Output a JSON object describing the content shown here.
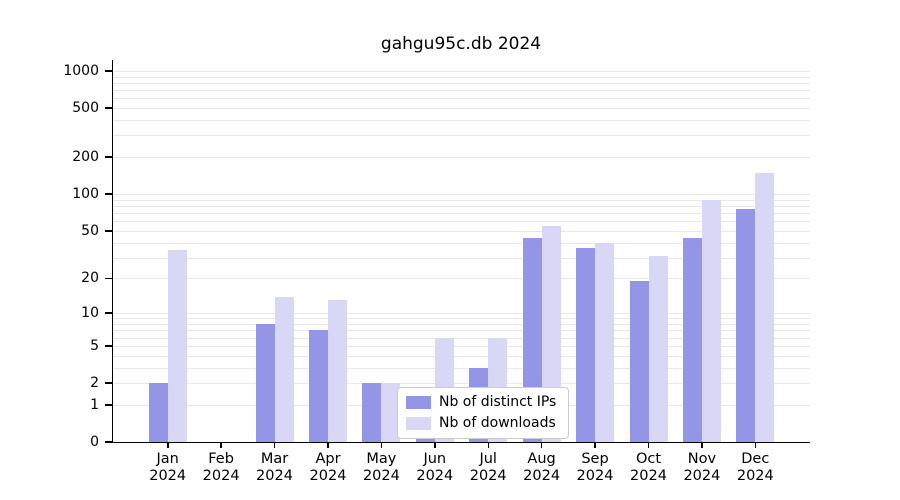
{
  "chart_data": {
    "type": "bar",
    "title": "gahgu95c.db 2024",
    "categories": [
      "Jan 2024",
      "Feb 2024",
      "Mar 2024",
      "Apr 2024",
      "May 2024",
      "Jun 2024",
      "Jul 2024",
      "Aug 2024",
      "Sep 2024",
      "Oct 2024",
      "Nov 2024",
      "Dec 2024"
    ],
    "series": [
      {
        "name": "Nb of distinct IPs",
        "color": "#9595e8",
        "values": [
          2,
          0,
          8,
          7,
          2,
          1,
          3,
          44,
          36,
          19,
          44,
          75
        ]
      },
      {
        "name": "Nb of downloads",
        "color": "#d8d8f6",
        "values": [
          35,
          0,
          14,
          13,
          2,
          6,
          6,
          55,
          40,
          31,
          90,
          150
        ]
      }
    ],
    "yticks": [
      0,
      1,
      2,
      5,
      10,
      20,
      50,
      100,
      200,
      500,
      1000
    ],
    "xlabel": "",
    "ylabel": "",
    "y_scale": "log10(value+1)",
    "ylim": [
      0,
      1250
    ],
    "grid": "horizontal",
    "legend_position": "inside-bottom-center"
  }
}
